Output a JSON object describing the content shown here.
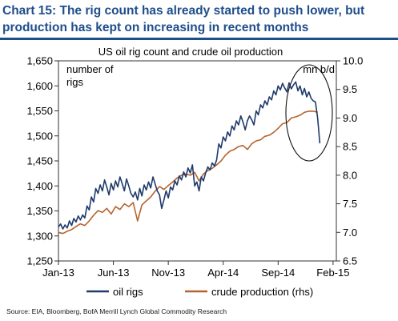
{
  "header": {
    "title_line1": "Chart 15: The rig count has already started to push lower, but",
    "title_line2": "production has kept on increasing in recent months"
  },
  "footer": {
    "source": "Source: EIA, Bloomberg, BofA Merrill Lynch Global Commodity Research"
  },
  "colors": {
    "header": "#1f4e8c",
    "oil_rigs": "#1f3a6b",
    "crude_production": "#b5642f"
  },
  "chart_data": {
    "type": "line",
    "title": "US oil rig count and crude oil production",
    "left_axis_label": [
      "number of",
      "rigs"
    ],
    "right_axis_label": "mn b/d",
    "ylim_left": [
      1250,
      1650
    ],
    "yticks_left": [
      "1,250",
      "1,300",
      "1,350",
      "1,400",
      "1,450",
      "1,500",
      "1,550",
      "1,600",
      "1,650"
    ],
    "ylim_right": [
      6.5,
      10.0
    ],
    "yticks_right": [
      "6.5",
      "7.0",
      "7.5",
      "8.0",
      "8.5",
      "9.0",
      "9.5",
      "10.0"
    ],
    "xlim": [
      0,
      25.3
    ],
    "xticks": [
      {
        "label": "Jan-13",
        "x": 0
      },
      {
        "label": "Jun-13",
        "x": 5
      },
      {
        "label": "Nov-13",
        "x": 10
      },
      {
        "label": "Apr-14",
        "x": 15
      },
      {
        "label": "Sep-14",
        "x": 20
      },
      {
        "label": "Feb-15",
        "x": 25
      }
    ],
    "grid": false,
    "legend_position": "bottom",
    "annotation": "circle around the recent rig-count decline and the latest production readings",
    "series": [
      {
        "name": "oil rigs",
        "axis": "left",
        "x": [
          0,
          0.2,
          0.4,
          0.6,
          0.8,
          1.0,
          1.2,
          1.4,
          1.6,
          1.8,
          2.0,
          2.2,
          2.4,
          2.6,
          2.8,
          3.0,
          3.2,
          3.4,
          3.6,
          3.8,
          4.0,
          4.2,
          4.4,
          4.6,
          4.8,
          5.0,
          5.2,
          5.4,
          5.6,
          5.8,
          6.0,
          6.2,
          6.4,
          6.6,
          6.8,
          7.0,
          7.2,
          7.4,
          7.6,
          7.8,
          8.0,
          8.2,
          8.4,
          8.6,
          8.8,
          9.0,
          9.2,
          9.4,
          9.6,
          9.8,
          10.0,
          10.2,
          10.4,
          10.6,
          10.8,
          11.0,
          11.2,
          11.4,
          11.6,
          11.8,
          12.0,
          12.2,
          12.4,
          12.6,
          12.8,
          13.0,
          13.2,
          13.4,
          13.6,
          13.8,
          14.0,
          14.2,
          14.4,
          14.6,
          14.8,
          15.0,
          15.2,
          15.4,
          15.6,
          15.8,
          16.0,
          16.2,
          16.4,
          16.6,
          16.8,
          17.0,
          17.2,
          17.4,
          17.6,
          17.8,
          18.0,
          18.2,
          18.4,
          18.6,
          18.8,
          19.0,
          19.2,
          19.4,
          19.6,
          19.8,
          20.0,
          20.2,
          20.4,
          20.6,
          20.8,
          21.0,
          21.2,
          21.4,
          21.6,
          21.8,
          22.0,
          22.2,
          22.4,
          22.6,
          22.8,
          23.0,
          23.2,
          23.4,
          23.6,
          23.8
        ],
        "values": [
          1318,
          1324,
          1314,
          1322,
          1316,
          1330,
          1321,
          1335,
          1328,
          1340,
          1332,
          1342,
          1336,
          1360,
          1352,
          1378,
          1368,
          1395,
          1385,
          1402,
          1390,
          1412,
          1398,
          1382,
          1405,
          1392,
          1410,
          1398,
          1418,
          1405,
          1390,
          1414,
          1400,
          1385,
          1378,
          1388,
          1372,
          1395,
          1380,
          1402,
          1392,
          1408,
          1396,
          1418,
          1404,
          1390,
          1382,
          1355,
          1372,
          1390,
          1376,
          1398,
          1392,
          1410,
          1402,
          1420,
          1412,
          1428,
          1418,
          1436,
          1426,
          1442,
          1400,
          1408,
          1390,
          1418,
          1410,
          1426,
          1438,
          1432,
          1446,
          1440,
          1452,
          1484,
          1476,
          1498,
          1490,
          1508,
          1500,
          1520,
          1512,
          1530,
          1522,
          1540,
          1528,
          1512,
          1530,
          1540,
          1532,
          1522,
          1550,
          1542,
          1562,
          1556,
          1570,
          1562,
          1578,
          1572,
          1590,
          1582,
          1600,
          1592,
          1605,
          1596,
          1588,
          1606,
          1594,
          1602,
          1608,
          1590,
          1600,
          1582,
          1595,
          1578,
          1588,
          1575,
          1570,
          1568,
          1535,
          1485
        ]
      },
      {
        "name": "crude production (rhs)",
        "axis": "right",
        "x": [
          0,
          0.4,
          0.8,
          1.2,
          1.6,
          2.0,
          2.4,
          2.8,
          3.2,
          3.6,
          4.0,
          4.4,
          4.8,
          5.2,
          5.6,
          6.0,
          6.4,
          6.8,
          7.2,
          7.6,
          8.0,
          8.4,
          8.8,
          9.2,
          9.6,
          10.0,
          10.4,
          10.8,
          11.2,
          11.6,
          12.0,
          12.4,
          12.8,
          13.2,
          13.6,
          14.0,
          14.4,
          14.8,
          15.2,
          15.6,
          16.0,
          16.4,
          16.8,
          17.2,
          17.6,
          18.0,
          18.4,
          18.8,
          19.2,
          19.6,
          20.0,
          20.4,
          20.8,
          21.2,
          21.6,
          22.0,
          22.4,
          22.8,
          23.2,
          23.6
        ],
        "values": [
          7.0,
          6.98,
          7.02,
          7.05,
          7.1,
          7.15,
          7.12,
          7.2,
          7.3,
          7.38,
          7.35,
          7.42,
          7.32,
          7.45,
          7.4,
          7.5,
          7.45,
          7.52,
          7.2,
          7.48,
          7.55,
          7.62,
          7.72,
          7.8,
          7.75,
          7.82,
          7.88,
          7.95,
          8.0,
          8.02,
          8.0,
          8.05,
          7.9,
          8.02,
          8.08,
          8.12,
          8.18,
          8.25,
          8.35,
          8.42,
          8.45,
          8.5,
          8.52,
          8.45,
          8.55,
          8.6,
          8.62,
          8.68,
          8.7,
          8.75,
          8.82,
          8.9,
          8.92,
          9.0,
          9.02,
          9.05,
          9.1,
          9.12,
          9.12,
          9.1
        ]
      }
    ]
  }
}
